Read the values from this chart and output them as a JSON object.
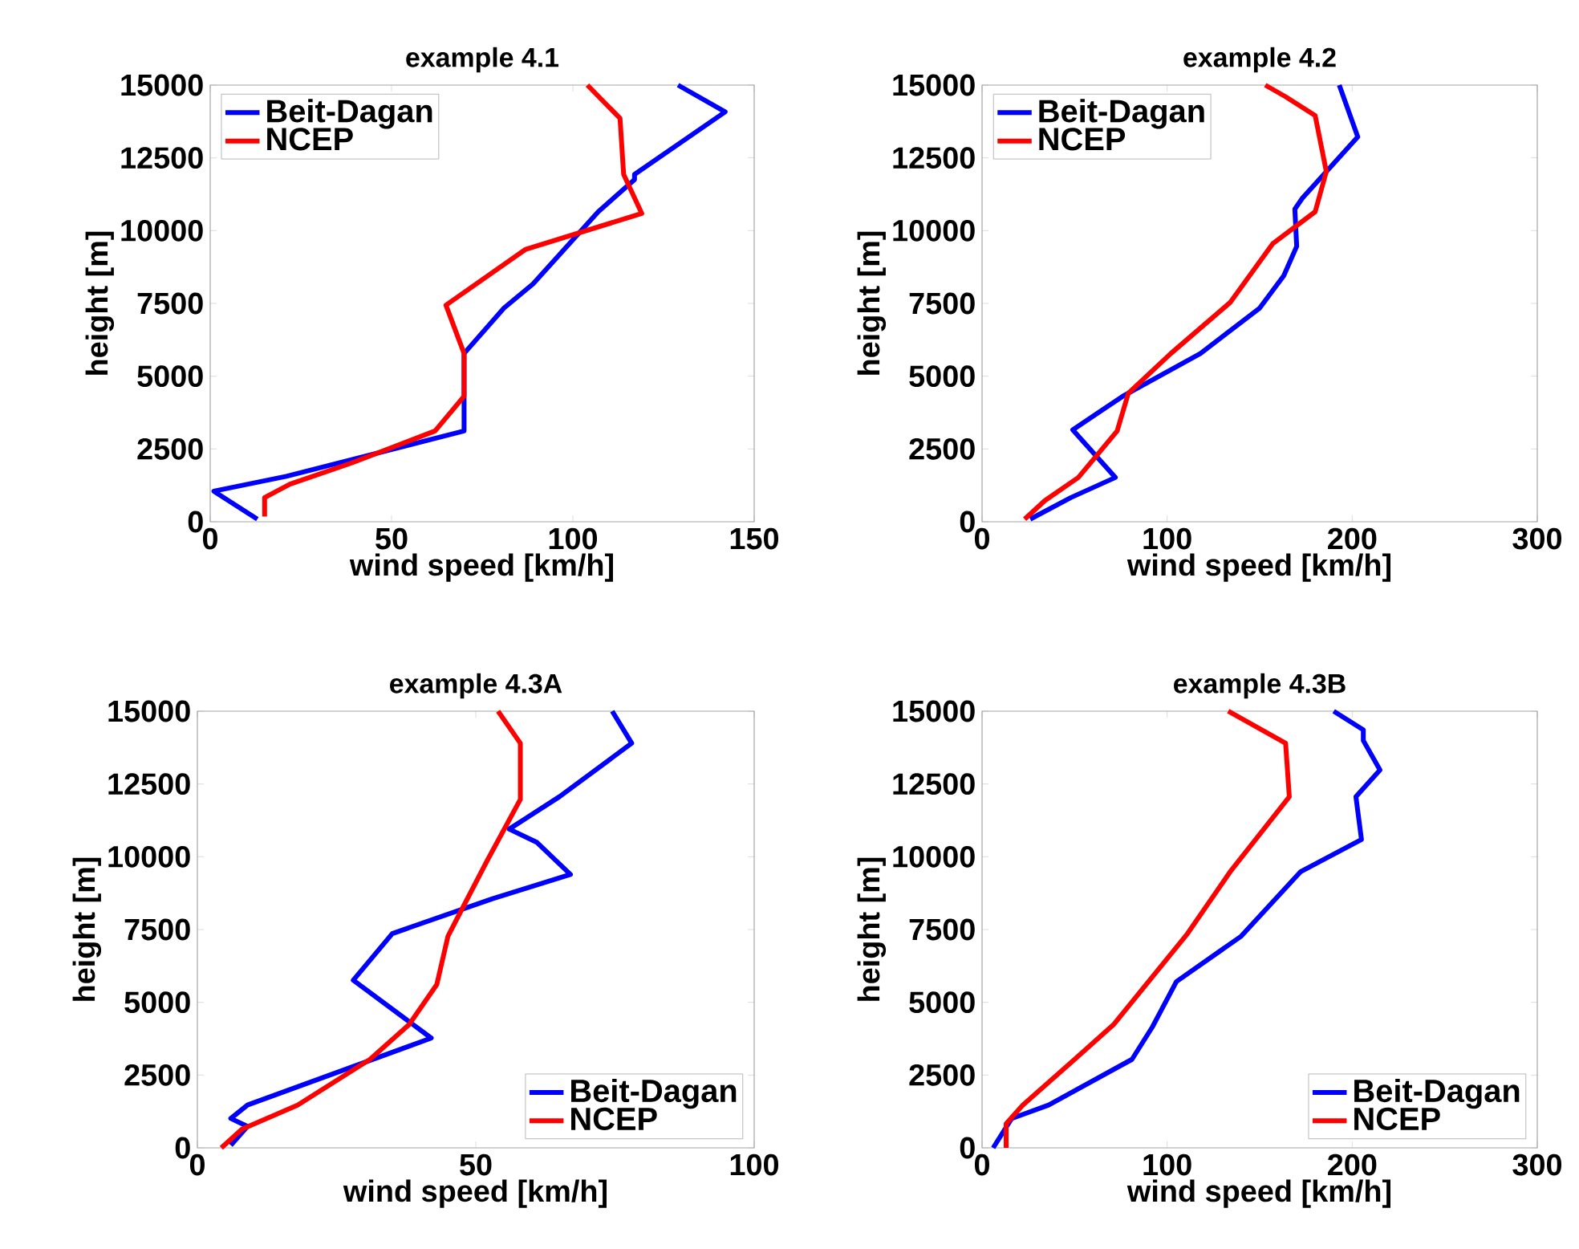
{
  "chart_data": [
    {
      "type": "line",
      "title": "example 4.1",
      "xlabel": "wind speed [km/h]",
      "ylabel": "height [m]",
      "xlim": [
        0,
        150
      ],
      "ylim": [
        0,
        15000
      ],
      "xticks": [
        0,
        50,
        100,
        150
      ],
      "yticks": [
        0,
        2500,
        5000,
        7500,
        10000,
        12500,
        15000
      ],
      "legend": "top left",
      "series": [
        {
          "name": "Beit-Dagan",
          "color": "#0000ff",
          "x": [
            129,
            142,
            117,
            117,
            107,
            99,
            89,
            81,
            70,
            70,
            21,
            1,
            13
          ],
          "values": [
            15000,
            14080,
            11930,
            11750,
            10650,
            9550,
            8170,
            7340,
            5780,
            3120,
            1560,
            1050,
            90
          ]
        },
        {
          "name": "NCEP",
          "color": "#ff0000",
          "x": [
            104,
            113,
            114,
            119,
            87,
            65,
            70,
            70,
            62,
            39,
            22,
            15,
            15
          ],
          "values": [
            15000,
            13860,
            11930,
            10590,
            9360,
            7440,
            5780,
            4310,
            3120,
            2020,
            1290,
            830,
            180
          ]
        }
      ]
    },
    {
      "type": "line",
      "title": "example 4.2",
      "xlabel": "wind speed [km/h]",
      "ylabel": "height [m]",
      "xlim": [
        0,
        300
      ],
      "ylim": [
        0,
        15000
      ],
      "xticks": [
        0,
        100,
        200,
        300
      ],
      "yticks": [
        0,
        2500,
        5000,
        7500,
        10000,
        12500,
        15000
      ],
      "legend": "top left",
      "series": [
        {
          "name": "Beit-Dagan",
          "color": "#0000ff",
          "x": [
            193,
            203,
            173,
            169,
            170,
            163,
            150,
            118,
            76,
            49,
            72,
            48,
            26
          ],
          "values": [
            15000,
            13220,
            11110,
            10740,
            9460,
            8450,
            7340,
            5780,
            4310,
            3160,
            1520,
            830,
            90
          ]
        },
        {
          "name": "NCEP",
          "color": "#ff0000",
          "x": [
            153,
            164,
            180,
            186,
            180,
            157,
            134,
            102,
            79,
            73,
            52,
            34,
            23
          ],
          "values": [
            15000,
            14600,
            13950,
            12030,
            10650,
            9550,
            7530,
            5780,
            4410,
            3120,
            1520,
            730,
            90
          ]
        }
      ]
    },
    {
      "type": "line",
      "title": "example 4.3A",
      "xlabel": "wind speed [km/h]",
      "ylabel": "height [m]",
      "xlim": [
        0,
        100
      ],
      "ylim": [
        0,
        15000
      ],
      "xticks": [
        0,
        50,
        100
      ],
      "yticks": [
        0,
        2500,
        5000,
        7500,
        10000,
        12500,
        15000
      ],
      "legend": "bottom right",
      "series": [
        {
          "name": "Beit-Dagan",
          "color": "#0000ff",
          "x": [
            74.5,
            78,
            65,
            56,
            61,
            67,
            53,
            35,
            28,
            42,
            9,
            6,
            9,
            6
          ],
          "values": [
            15000,
            13900,
            12060,
            10950,
            10490,
            9390,
            8560,
            7360,
            5760,
            3770,
            1470,
            1010,
            740,
            90
          ]
        },
        {
          "name": "NCEP",
          "color": "#ff0000",
          "x": [
            54,
            58,
            58,
            52,
            47,
            45,
            43,
            38,
            31,
            18,
            8,
            4.3
          ],
          "values": [
            15000,
            13900,
            11970,
            9850,
            8010,
            7270,
            5610,
            4230,
            3040,
            1470,
            640,
            0
          ]
        }
      ]
    },
    {
      "type": "line",
      "title": "example 4.3B",
      "xlabel": "wind speed [km/h]",
      "ylabel": "height [m]",
      "xlim": [
        0,
        300
      ],
      "ylim": [
        0,
        15000
      ],
      "xticks": [
        0,
        100,
        200,
        300
      ],
      "yticks": [
        0,
        2500,
        5000,
        7500,
        10000,
        12500,
        15000
      ],
      "legend": "bottom right",
      "series": [
        {
          "name": "Beit-Dagan",
          "color": "#0000ff",
          "x": [
            190,
            206,
            206,
            215,
            202,
            205,
            172,
            140,
            105,
            92,
            81,
            36,
            16,
            6
          ],
          "values": [
            15000,
            14360,
            13990,
            12980,
            12060,
            10590,
            9480,
            7270,
            5710,
            4150,
            3040,
            1470,
            1010,
            0
          ]
        },
        {
          "name": "NCEP",
          "color": "#ff0000",
          "x": [
            133,
            164,
            166,
            134,
            111,
            71,
            50,
            22,
            13,
            13
          ],
          "values": [
            15000,
            13900,
            12060,
            9480,
            7360,
            4230,
            3040,
            1470,
            830,
            0
          ]
        }
      ]
    }
  ]
}
